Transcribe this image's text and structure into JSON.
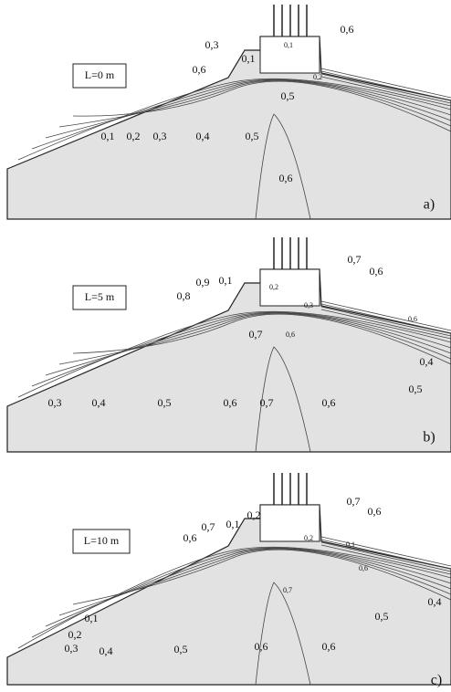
{
  "panels": [
    {
      "length": "L=0 m",
      "letter": "a)",
      "labels": [
        "0,6",
        "0,3",
        "0,1",
        "0,1",
        "0,6",
        "0,2",
        "0,5",
        "0,1",
        "0,2",
        "0,3",
        "0,4",
        "0,5",
        "0,6"
      ]
    },
    {
      "length": "L=5 m",
      "letter": "b)",
      "labels": [
        "0,7",
        "0,6",
        "0,9",
        "0,1",
        "0,2",
        "0,8",
        "0,3",
        "0,6",
        "0,7",
        "0,6",
        "0,4",
        "0,5",
        "0,3",
        "0,4",
        "0,5",
        "0,6",
        "0,7",
        "0,6"
      ]
    },
    {
      "length": "L=10 m",
      "letter": "c)",
      "labels": [
        "0,7",
        "0,6",
        "0,2",
        "0,1",
        "0,7",
        "0,6",
        "0,2",
        "0,1",
        "0,6",
        "0,7",
        "0,4",
        "0,5",
        "0,1",
        "0,2",
        "0,3",
        "0,4",
        "0,5",
        "0,6",
        "0,6"
      ]
    }
  ]
}
